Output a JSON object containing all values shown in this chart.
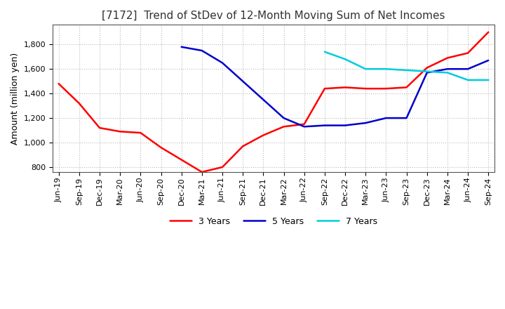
{
  "title": "[7172]  Trend of StDev of 12-Month Moving Sum of Net Incomes",
  "ylabel": "Amount (million yen)",
  "ylim": [
    760,
    1960
  ],
  "yticks": [
    800,
    1000,
    1200,
    1400,
    1600,
    1800
  ],
  "background_color": "#ffffff",
  "plot_bg_color": "#ffffff",
  "grid_color": "#bbbbbb",
  "title_fontsize": 11,
  "label_fontsize": 9,
  "tick_fontsize": 8,
  "series": {
    "3years": {
      "color": "#ff0000",
      "label": "3 Years",
      "y": [
        1480,
        1320,
        1120,
        1090,
        1080,
        960,
        860,
        760,
        800,
        970,
        1060,
        1130,
        1150,
        1440,
        1450,
        1440,
        1440,
        1450,
        1610,
        1690,
        1730,
        1900
      ]
    },
    "5years": {
      "color": "#0000cc",
      "label": "5 Years",
      "y": [
        null,
        null,
        null,
        null,
        null,
        null,
        1780,
        1750,
        1650,
        1500,
        1350,
        1200,
        1130,
        1140,
        1140,
        1160,
        1200,
        1200,
        1570,
        1600,
        1600,
        1670
      ]
    },
    "7years": {
      "color": "#00ccdd",
      "label": "7 Years",
      "y": [
        null,
        null,
        null,
        null,
        null,
        null,
        null,
        null,
        null,
        null,
        null,
        null,
        null,
        1740,
        1680,
        1600,
        1600,
        1590,
        1580,
        1570,
        1510,
        1510
      ]
    },
    "10years": {
      "color": "#008000",
      "y": [
        null,
        null,
        null,
        null,
        null,
        null,
        null,
        null,
        null,
        null,
        null,
        null,
        null,
        null,
        null,
        null,
        null,
        null,
        null,
        null,
        null,
        null
      ]
    }
  },
  "xtick_labels": [
    "Jun-19",
    "Sep-19",
    "Dec-19",
    "Mar-20",
    "Jun-20",
    "Sep-20",
    "Dec-20",
    "Mar-21",
    "Jun-21",
    "Sep-21",
    "Dec-21",
    "Mar-22",
    "Jun-22",
    "Sep-22",
    "Dec-22",
    "Mar-23",
    "Jun-23",
    "Sep-23",
    "Dec-23",
    "Mar-24",
    "Jun-24",
    "Sep-24"
  ]
}
